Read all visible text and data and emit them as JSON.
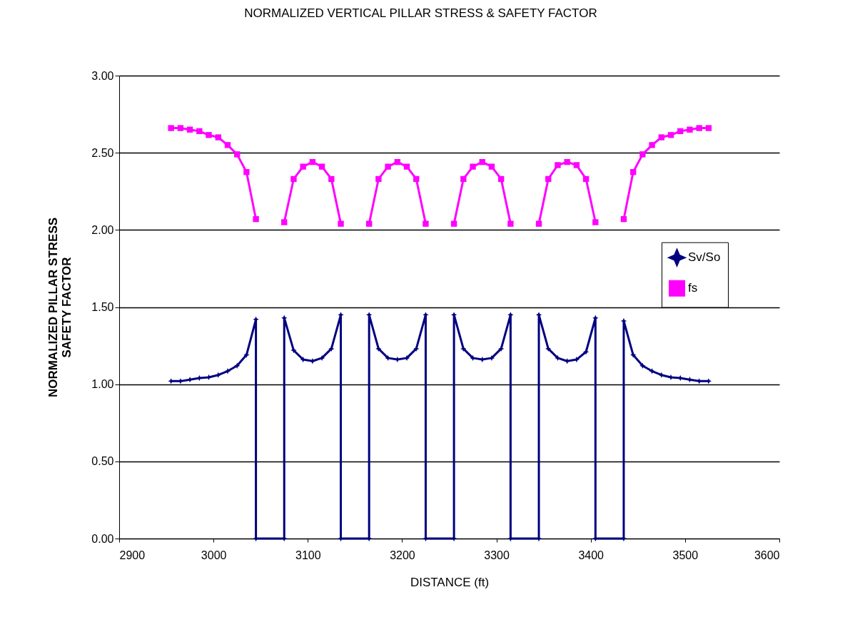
{
  "chart_data": {
    "type": "line",
    "title": "NORMALIZED VERTICAL PILLAR STRESS & SAFETY FACTOR",
    "xlabel": "DISTANCE (ft)",
    "ylabel": "NORMALIZED PILLAR STRESS\nSAFETY FACTOR",
    "xlim": [
      2900,
      3600
    ],
    "xticks": [
      2900,
      3000,
      3100,
      3200,
      3300,
      3400,
      3500,
      3600
    ],
    "ylim": [
      0,
      3
    ],
    "yticks": [
      {
        "value": 0,
        "label": "0.00"
      },
      {
        "value": 0.5,
        "label": "0.50"
      },
      {
        "value": 1,
        "label": "1.00"
      },
      {
        "value": 1.5,
        "label": "1.50"
      },
      {
        "value": 2,
        "label": "2.00"
      },
      {
        "value": 2.5,
        "label": "2.50"
      },
      {
        "value": 3,
        "label": "3.00"
      }
    ],
    "grid": "y",
    "legend": "right",
    "series": [
      {
        "name": "Sv/So",
        "color": "#000080",
        "marker": "star",
        "x": [
          2955,
          2965,
          2975,
          2985,
          2995,
          3005,
          3015,
          3025,
          3035,
          3045,
          3045,
          3075,
          3075,
          3085,
          3095,
          3105,
          3115,
          3125,
          3135,
          3135,
          3165,
          3165,
          3175,
          3185,
          3195,
          3205,
          3215,
          3225,
          3225,
          3255,
          3255,
          3265,
          3275,
          3285,
          3295,
          3305,
          3315,
          3315,
          3345,
          3345,
          3355,
          3365,
          3375,
          3385,
          3395,
          3405,
          3405,
          3435,
          3435,
          3445,
          3455,
          3465,
          3475,
          3485,
          3495,
          3505,
          3515,
          3525
        ],
        "values": [
          1.02,
          1.02,
          1.03,
          1.04,
          1.045,
          1.06,
          1.085,
          1.12,
          1.19,
          1.42,
          0,
          0,
          1.43,
          1.22,
          1.16,
          1.15,
          1.17,
          1.23,
          1.45,
          0,
          0,
          1.45,
          1.23,
          1.17,
          1.16,
          1.17,
          1.23,
          1.45,
          0,
          0,
          1.45,
          1.23,
          1.17,
          1.16,
          1.17,
          1.23,
          1.45,
          0,
          0,
          1.45,
          1.23,
          1.17,
          1.15,
          1.16,
          1.21,
          1.43,
          0,
          0,
          1.41,
          1.19,
          1.12,
          1.085,
          1.06,
          1.045,
          1.04,
          1.03,
          1.02,
          1.02
        ]
      },
      {
        "name": "fs",
        "color": "#ff00ff",
        "marker": "square",
        "x": [
          2955,
          2965,
          2975,
          2985,
          2995,
          3005,
          3015,
          3025,
          3035,
          3045,
          3060,
          3075,
          3085,
          3095,
          3105,
          3115,
          3125,
          3135,
          3150,
          3165,
          3175,
          3185,
          3195,
          3205,
          3215,
          3225,
          3240,
          3255,
          3265,
          3275,
          3285,
          3295,
          3305,
          3315,
          3330,
          3345,
          3355,
          3365,
          3375,
          3385,
          3395,
          3405,
          3420,
          3435,
          3445,
          3455,
          3465,
          3475,
          3485,
          3495,
          3505,
          3515,
          3525
        ],
        "values": [
          2.66,
          2.66,
          2.65,
          2.64,
          2.615,
          2.6,
          2.55,
          2.49,
          2.375,
          2.07,
          null,
          2.05,
          2.33,
          2.41,
          2.44,
          2.41,
          2.33,
          2.04,
          null,
          2.04,
          2.33,
          2.41,
          2.44,
          2.41,
          2.33,
          2.04,
          null,
          2.04,
          2.33,
          2.41,
          2.44,
          2.41,
          2.33,
          2.04,
          null,
          2.04,
          2.33,
          2.42,
          2.44,
          2.42,
          2.33,
          2.05,
          null,
          2.07,
          2.375,
          2.49,
          2.55,
          2.6,
          2.615,
          2.64,
          2.65,
          2.66,
          2.66
        ]
      }
    ]
  }
}
